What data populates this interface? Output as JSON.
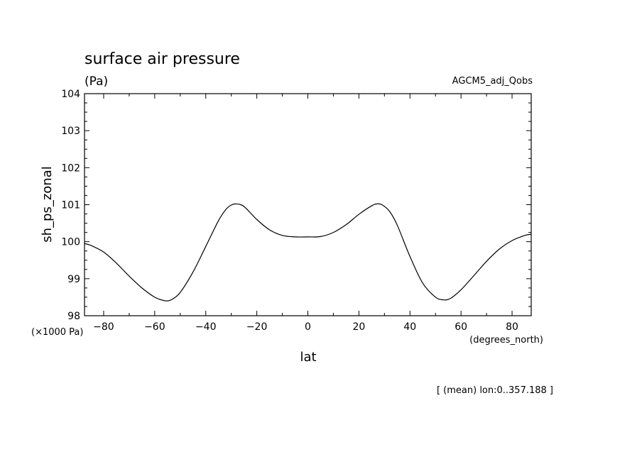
{
  "chart_data": {
    "type": "line",
    "title": "surface air pressure",
    "subtitle": "(Pa)",
    "model_label": "AGCM5_adj_Qobs",
    "xlabel": "lat",
    "ylabel": "sh_ps_zonal",
    "x_units": "(degrees_north)",
    "y_units": "(×1000 Pa)",
    "footnote": "[ (mean) lon:0..357.188 ]",
    "xlim": [
      -87.5,
      87.5
    ],
    "ylim": [
      98,
      104
    ],
    "x_ticks": [
      -80,
      -60,
      -40,
      -20,
      0,
      20,
      40,
      60,
      80
    ],
    "x_tick_labels": [
      "−80",
      "−60",
      "−40",
      "−20",
      "0",
      "20",
      "40",
      "60",
      "80"
    ],
    "y_ticks": [
      98,
      99,
      100,
      101,
      102,
      103,
      104
    ],
    "y_tick_labels": [
      "98",
      "99",
      "100",
      "101",
      "102",
      "103",
      "104"
    ],
    "grid": false,
    "series": [
      {
        "x": [
          -87.5,
          -85,
          -80,
          -75,
          -70,
          -65,
          -60,
          -57,
          -55,
          -53,
          -50,
          -45,
          -40,
          -35,
          -32,
          -30,
          -28,
          -25,
          -20,
          -15,
          -10,
          -5,
          0,
          5,
          10,
          15,
          20,
          25,
          27,
          29,
          32,
          35,
          40,
          45,
          50,
          53,
          55,
          57,
          60,
          65,
          70,
          75,
          80,
          85,
          87.5
        ],
        "values": [
          99.95,
          99.9,
          99.72,
          99.42,
          99.07,
          98.75,
          98.5,
          98.42,
          98.4,
          98.45,
          98.63,
          99.18,
          99.87,
          100.57,
          100.88,
          100.99,
          101.02,
          100.95,
          100.6,
          100.32,
          100.17,
          100.13,
          100.13,
          100.14,
          100.25,
          100.46,
          100.74,
          100.97,
          101.02,
          101.0,
          100.82,
          100.45,
          99.6,
          98.88,
          98.5,
          98.43,
          98.44,
          98.52,
          98.7,
          99.08,
          99.47,
          99.8,
          100.03,
          100.17,
          100.2
        ]
      }
    ]
  }
}
